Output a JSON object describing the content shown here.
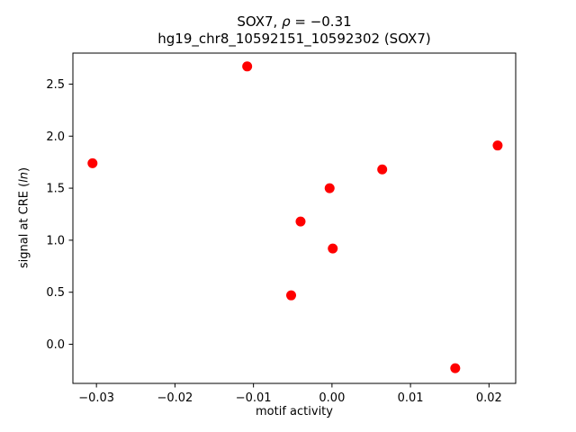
{
  "chart_data": {
    "type": "scatter",
    "title": "SOX7, ρ = −0.31",
    "subtitle": "hg19_chr8_10592151_10592302 (SOX7)",
    "title_parts": {
      "prefix": "SOX7, ",
      "rho": "ρ",
      "suffix": " = −0.31"
    },
    "xlabel": "motif activity",
    "ylabel": "signal at CRE (ln)",
    "ylabel_parts": {
      "prefix": "signal at CRE (",
      "italic": "ln",
      "suffix": ")"
    },
    "marker": {
      "shape": "circle",
      "color": "#ff0000"
    },
    "axis_color": "#000000",
    "background_color": "#ffffff",
    "grid": false,
    "legend": null,
    "xlim": [
      -0.033,
      0.0234
    ],
    "ylim": [
      -0.376,
      2.798
    ],
    "xticks": {
      "values": [
        -0.03,
        -0.02,
        -0.01,
        0.0,
        0.01,
        0.02
      ],
      "labels": [
        "−0.03",
        "−0.02",
        "−0.01",
        "0.00",
        "0.01",
        "0.02"
      ]
    },
    "yticks": {
      "values": [
        0.0,
        0.5,
        1.0,
        1.5,
        2.0,
        2.5
      ],
      "labels": [
        "0.0",
        "0.5",
        "1.0",
        "1.5",
        "2.0",
        "2.5"
      ]
    },
    "points": [
      {
        "x": -0.0305,
        "y": 1.74
      },
      {
        "x": -0.0108,
        "y": 2.67
      },
      {
        "x": -0.0052,
        "y": 0.47
      },
      {
        "x": -0.004,
        "y": 1.18
      },
      {
        "x": -0.0003,
        "y": 1.5
      },
      {
        "x": 0.0001,
        "y": 0.92
      },
      {
        "x": 0.0064,
        "y": 1.68
      },
      {
        "x": 0.0157,
        "y": -0.23
      },
      {
        "x": 0.0211,
        "y": 1.91
      }
    ]
  }
}
